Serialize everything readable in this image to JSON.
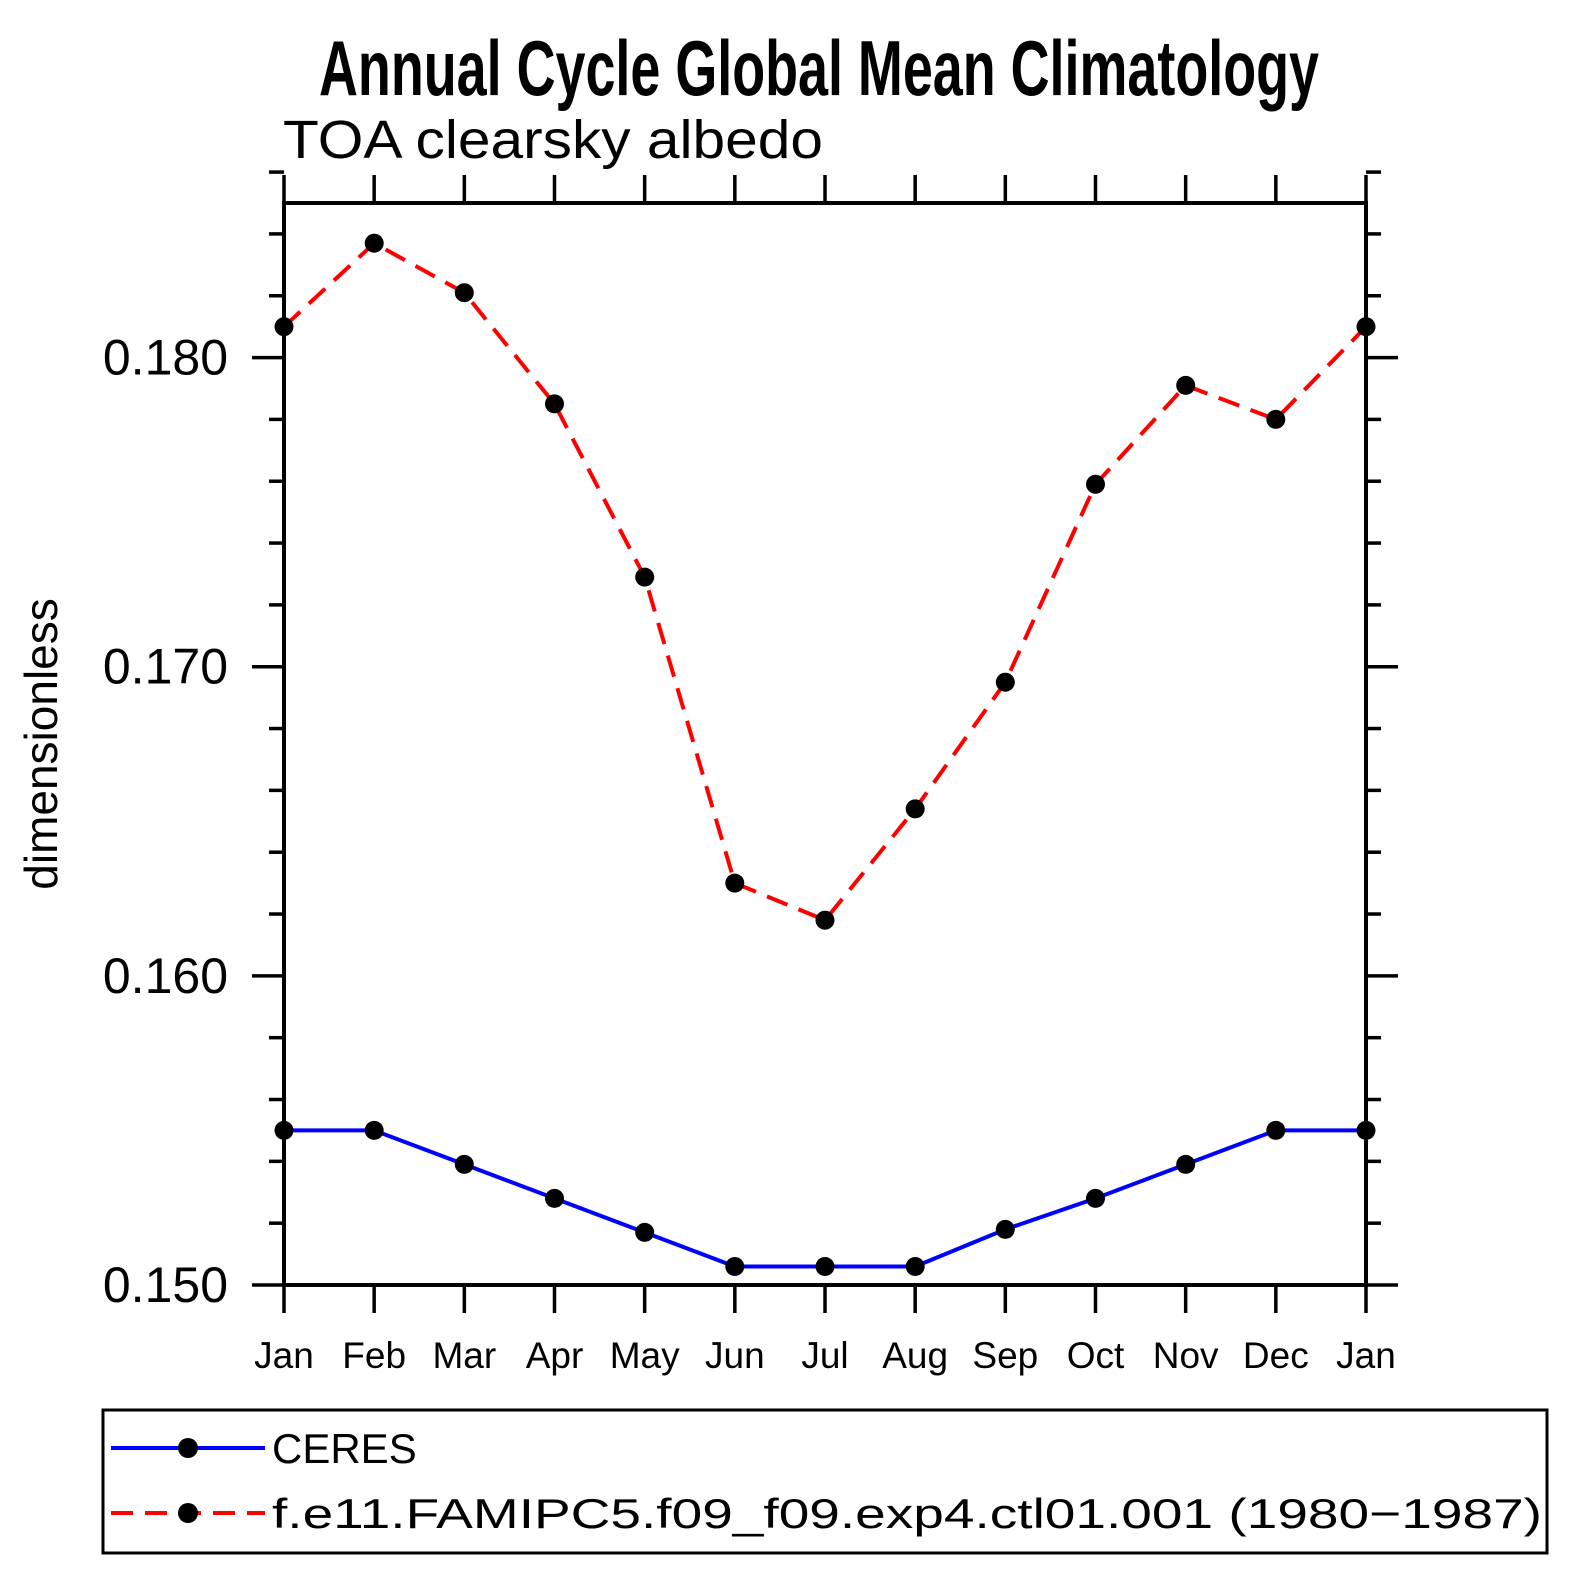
{
  "title": "Annual Cycle Global Mean Climatology",
  "subtitle": "TOA clearsky albedo",
  "axes": {
    "y_label": "dimensionless",
    "y_tick_labels": [
      "0.150",
      "0.160",
      "0.170",
      "0.180"
    ],
    "y_major_ticks": [
      0.15,
      0.16,
      0.17,
      0.18
    ],
    "y_minor_step": 0.002,
    "y_range": [
      0.15,
      0.185
    ],
    "x_tick_labels": [
      "Jan",
      "Feb",
      "Mar",
      "Apr",
      "May",
      "Jun",
      "Jul",
      "Aug",
      "Sep",
      "Oct",
      "Nov",
      "Dec",
      "Jan"
    ]
  },
  "legend": {
    "entries": [
      {
        "label": "CERES",
        "line_color": "#0000ff",
        "line_style": "solid",
        "marker": "filled-circle",
        "marker_color": "#000000"
      },
      {
        "label": "f.e11.FAMIPC5.f09_f09.exp4.ctl01.001 (1980−1987)",
        "line_color": "#ff0000",
        "line_style": "dashed",
        "marker": "filled-circle",
        "marker_color": "#000000"
      }
    ]
  },
  "chart_data": {
    "type": "line",
    "title": "Annual Cycle Global Mean Climatology",
    "subtitle": "TOA clearsky albedo",
    "xlabel": "",
    "ylabel": "dimensionless",
    "categories": [
      "Jan",
      "Feb",
      "Mar",
      "Apr",
      "May",
      "Jun",
      "Jul",
      "Aug",
      "Sep",
      "Oct",
      "Nov",
      "Dec",
      "Jan"
    ],
    "ylim": [
      0.15,
      0.185
    ],
    "y_major_ticks": [
      0.15,
      0.16,
      0.17,
      0.18
    ],
    "y_minor_step": 0.002,
    "grid": false,
    "legend_position": "bottom-left",
    "series": [
      {
        "name": "CERES",
        "color": "#0000ff",
        "style": "solid",
        "marker_color": "#000000",
        "values": [
          0.155,
          0.155,
          0.1539,
          0.1528,
          0.1517,
          0.1506,
          0.1506,
          0.1506,
          0.1518,
          0.1528,
          0.1539,
          0.155,
          0.155
        ]
      },
      {
        "name": "f.e11.FAMIPC5.f09_f09.exp4.ctl01.001 (1980−1987)",
        "color": "#ff0000",
        "style": "dashed",
        "marker_color": "#000000",
        "values": [
          0.181,
          0.1837,
          0.1821,
          0.1785,
          0.1729,
          0.163,
          0.1618,
          0.1654,
          0.1695,
          0.1759,
          0.1791,
          0.178,
          0.181
        ]
      }
    ]
  }
}
